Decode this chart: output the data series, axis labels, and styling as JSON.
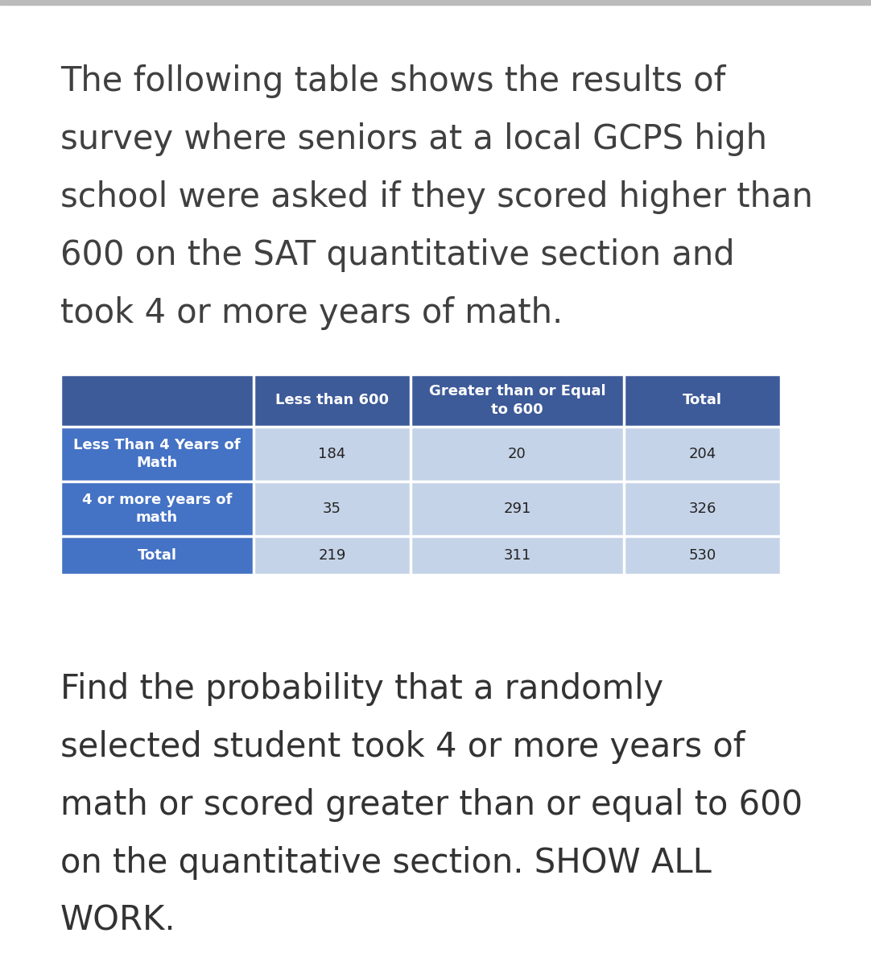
{
  "intro_text_lines": [
    "The following table shows the results of",
    "survey where seniors at a local GCPS high",
    "school were asked if they scored higher than",
    "600 on the SAT quantitative section and",
    "took 4 or more years of math."
  ],
  "question_text_lines": [
    "Find the probability that a randomly",
    "selected student took 4 or more years of",
    "math or scored greater than or equal to 600",
    "on the quantitative section. SHOW ALL",
    "WORK."
  ],
  "header_row": [
    "",
    "Less than 600",
    "Greater than or Equal\nto 600",
    "Total"
  ],
  "data_rows": [
    [
      "Less Than 4 Years of\nMath",
      "184",
      "20",
      "204"
    ],
    [
      "4 or more years of\nmath",
      "35",
      "291",
      "326"
    ],
    [
      "Total",
      "219",
      "311",
      "530"
    ]
  ],
  "header_bg": "#3d5a99",
  "row_label_bg": "#4472C4",
  "row_data_bg": "#c5d3e8",
  "header_text_color": "#FFFFFF",
  "row_label_text_color": "#FFFFFF",
  "data_text_color": "#222222",
  "bg_color": "#FFFFFF",
  "intro_text_color": "#404040",
  "question_text_color": "#333333",
  "topbar_color": "#aaaaaa",
  "intro_fontsize": 30,
  "question_fontsize": 30,
  "table_header_fontsize": 13,
  "table_data_fontsize": 13
}
